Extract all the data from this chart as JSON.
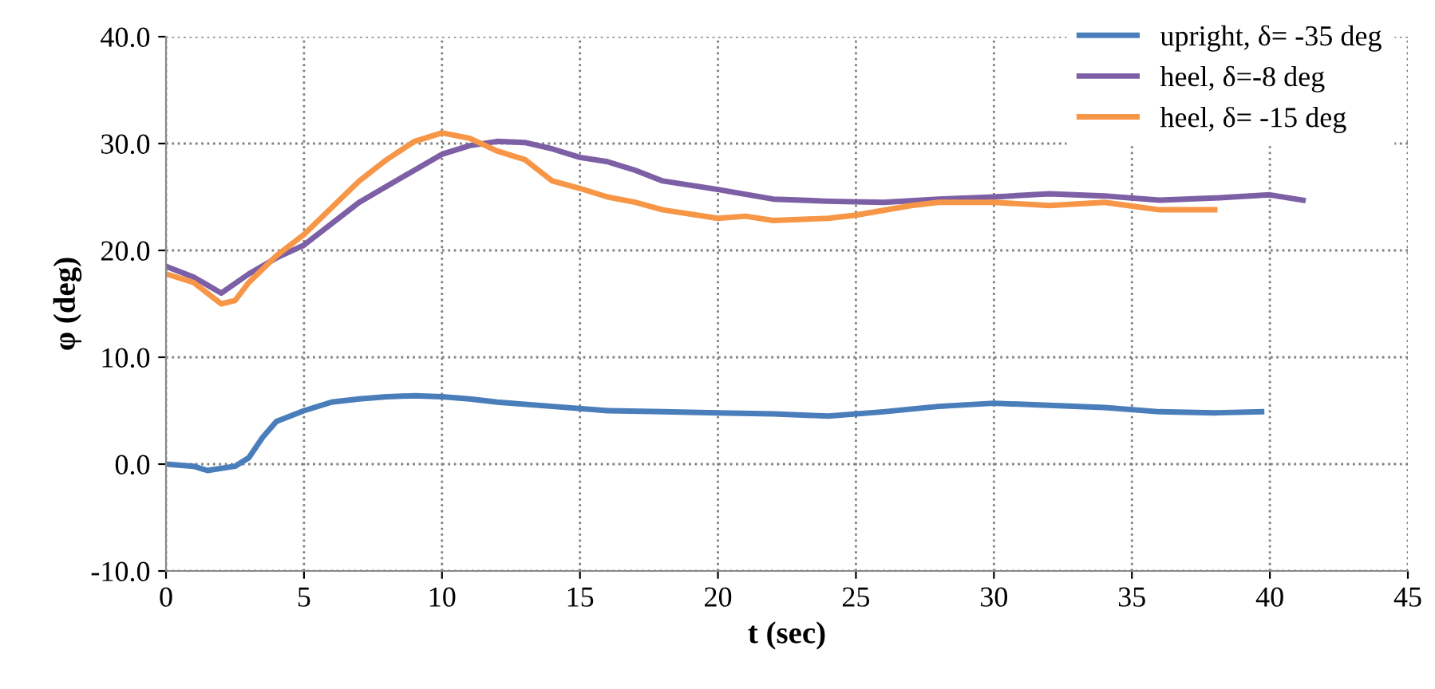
{
  "chart_data": {
    "type": "line",
    "xlabel": "t (sec)",
    "ylabel": "φ (deg)",
    "xlim": [
      0,
      45
    ],
    "xticks": [
      0,
      5,
      10,
      15,
      20,
      25,
      30,
      35,
      40,
      45
    ],
    "ylim": [
      -10,
      40
    ],
    "yticks": [
      {
        "value": -10,
        "label": "-10.0"
      },
      {
        "value": 0,
        "label": "0.0"
      },
      {
        "value": 10,
        "label": "10.0"
      },
      {
        "value": 20,
        "label": "20.0"
      },
      {
        "value": 30,
        "label": "30.0"
      },
      {
        "value": 40,
        "label": "40.0"
      }
    ],
    "grid": true,
    "legend": "top right",
    "line_style": "solid",
    "marker": "none",
    "series": [
      {
        "name": "upright, δ= -35 deg",
        "color": "#4a7ebb",
        "x": [
          0,
          1,
          1.5,
          2.5,
          3,
          3.5,
          4,
          5,
          6,
          7,
          8,
          9,
          10,
          11,
          12,
          14,
          16,
          18,
          20,
          22,
          24,
          26,
          28,
          30,
          32,
          34,
          36,
          38,
          39.7
        ],
        "values": [
          0,
          -0.2,
          -0.6,
          -0.2,
          0.6,
          2.5,
          4.0,
          5.0,
          5.8,
          6.1,
          6.3,
          6.4,
          6.3,
          6.1,
          5.8,
          5.4,
          5.0,
          4.9,
          4.8,
          4.7,
          4.5,
          4.9,
          5.4,
          5.7,
          5.5,
          5.3,
          4.9,
          4.8,
          4.9
        ]
      },
      {
        "name": "heel, δ=-8 deg",
        "color": "#7d5fa5",
        "x": [
          0,
          1,
          2,
          3,
          4,
          5,
          6,
          7,
          8,
          9,
          10,
          11,
          12,
          13,
          14,
          15,
          16,
          17,
          18,
          20,
          22,
          24,
          26,
          28,
          30,
          32,
          34,
          36,
          38,
          40,
          41.2
        ],
        "values": [
          18.5,
          17.5,
          16.0,
          17.8,
          19.3,
          20.5,
          22.5,
          24.5,
          26.0,
          27.5,
          29.0,
          29.8,
          30.2,
          30.1,
          29.5,
          28.7,
          28.3,
          27.5,
          26.5,
          25.7,
          24.8,
          24.6,
          24.5,
          24.8,
          25.0,
          25.3,
          25.1,
          24.7,
          24.9,
          25.2,
          24.7
        ]
      },
      {
        "name": "heel, δ= -15 deg",
        "color": "#f79646",
        "x": [
          0,
          1,
          2,
          2.5,
          3,
          4,
          5,
          6,
          7,
          8,
          9,
          10,
          11,
          12,
          13,
          14,
          15,
          16,
          17,
          18,
          20,
          21,
          22,
          24,
          25,
          27,
          28,
          30,
          32,
          34,
          36,
          38
        ],
        "values": [
          17.8,
          17.0,
          15.0,
          15.3,
          17.0,
          19.5,
          21.5,
          24.0,
          26.5,
          28.5,
          30.2,
          31.0,
          30.5,
          29.3,
          28.5,
          26.5,
          25.8,
          25.0,
          24.5,
          23.8,
          23.0,
          23.2,
          22.8,
          23.0,
          23.3,
          24.2,
          24.5,
          24.5,
          24.2,
          24.5,
          23.8,
          23.8
        ]
      }
    ]
  }
}
